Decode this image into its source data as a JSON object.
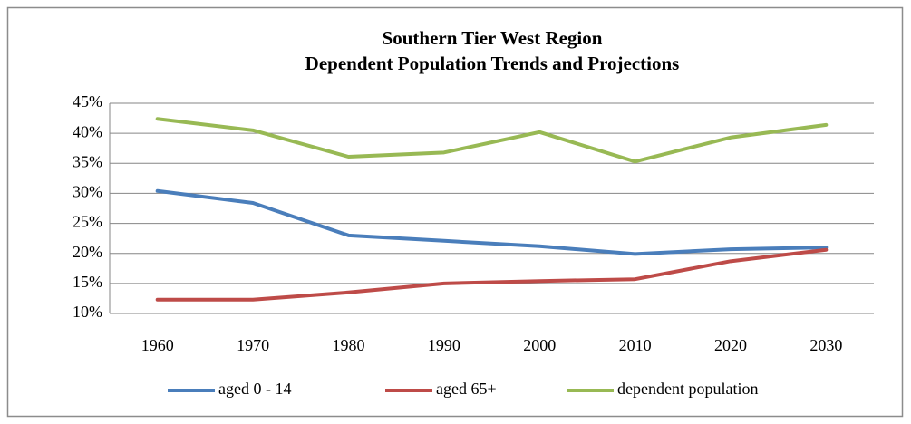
{
  "chart_data": {
    "type": "line",
    "title": "Southern Tier West Region",
    "subtitle": "Dependent Population Trends and Projections",
    "categories": [
      "1960",
      "1970",
      "1980",
      "1990",
      "2000",
      "2010",
      "2020",
      "2030"
    ],
    "series": [
      {
        "name": "aged 0 - 14",
        "color": "#4a7ebb",
        "values": [
          30.4,
          28.4,
          23.0,
          22.1,
          21.2,
          19.9,
          20.7,
          21.0
        ]
      },
      {
        "name": "aged 65+",
        "color": "#be4b48",
        "values": [
          12.3,
          12.3,
          13.5,
          15.0,
          15.4,
          15.7,
          18.7,
          20.6
        ]
      },
      {
        "name": "dependent population",
        "color": "#98b954",
        "values": [
          42.4,
          40.5,
          36.1,
          36.8,
          40.2,
          35.3,
          39.3,
          41.4
        ]
      }
    ],
    "ylim": [
      10,
      45
    ],
    "yticks": [
      {
        "value": 10,
        "label": "10%"
      },
      {
        "value": 15,
        "label": "15%"
      },
      {
        "value": 20,
        "label": "20%"
      },
      {
        "value": 25,
        "label": "25%"
      },
      {
        "value": 30,
        "label": "30%"
      },
      {
        "value": 35,
        "label": "35%"
      },
      {
        "value": 40,
        "label": "40%"
      },
      {
        "value": 45,
        "label": "45%"
      }
    ],
    "grid": true,
    "legend": "bottom"
  }
}
